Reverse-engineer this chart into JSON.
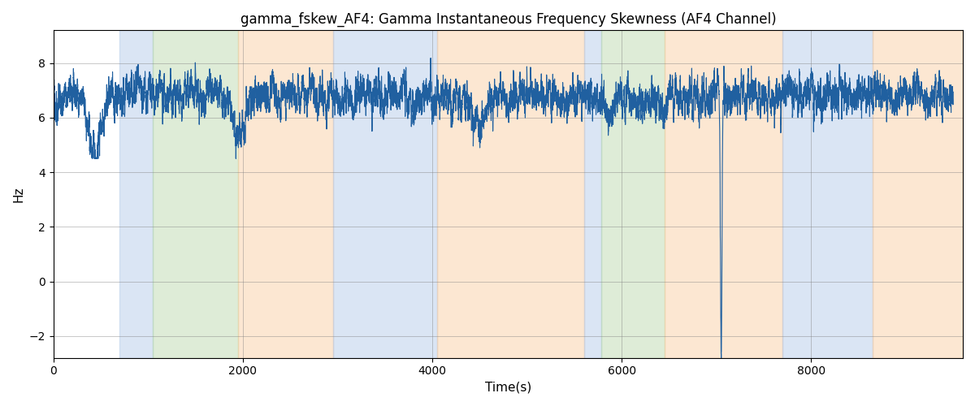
{
  "title": "gamma_fskew_AF4: Gamma Instantaneous Frequency Skewness (AF4 Channel)",
  "xlabel": "Time(s)",
  "ylabel": "Hz",
  "xlim": [
    0,
    9600
  ],
  "ylim": [
    -2.8,
    9.2
  ],
  "yticks": [
    -2,
    0,
    2,
    4,
    6,
    8
  ],
  "xticks": [
    0,
    2000,
    4000,
    6000,
    8000
  ],
  "line_color": "#2060a0",
  "line_width": 0.8,
  "background_color": "#ffffff",
  "figsize": [
    12,
    5
  ],
  "dpi": 100,
  "title_fontsize": 12,
  "bands": [
    {
      "xmin": 700,
      "xmax": 1050,
      "color": "#aec6e8",
      "alpha": 0.45
    },
    {
      "xmin": 1050,
      "xmax": 1950,
      "color": "#b6d7a8",
      "alpha": 0.45
    },
    {
      "xmin": 1950,
      "xmax": 2950,
      "color": "#f9cb9c",
      "alpha": 0.45
    },
    {
      "xmin": 2950,
      "xmax": 4050,
      "color": "#aec6e8",
      "alpha": 0.45
    },
    {
      "xmin": 4050,
      "xmax": 5600,
      "color": "#f9cb9c",
      "alpha": 0.45
    },
    {
      "xmin": 5600,
      "xmax": 5780,
      "color": "#aec6e8",
      "alpha": 0.45
    },
    {
      "xmin": 5780,
      "xmax": 6450,
      "color": "#b6d7a8",
      "alpha": 0.45
    },
    {
      "xmin": 6450,
      "xmax": 7700,
      "color": "#f9cb9c",
      "alpha": 0.45
    },
    {
      "xmin": 7700,
      "xmax": 8650,
      "color": "#aec6e8",
      "alpha": 0.45
    },
    {
      "xmin": 8650,
      "xmax": 9600,
      "color": "#f9cb9c",
      "alpha": 0.45
    }
  ],
  "seed": 42,
  "n_points": 9500,
  "signal_base": 6.8,
  "signal_noise_std": 0.35,
  "spike_time": 7050,
  "spike_value": -2.5
}
